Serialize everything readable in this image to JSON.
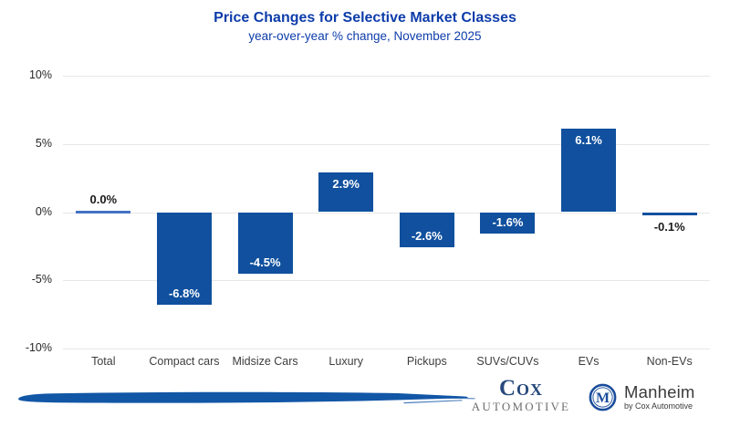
{
  "chart_data": {
    "type": "bar",
    "title": "Price Changes for Selective Market Classes",
    "subtitle": "year-over-year % change, November 2025",
    "categories": [
      "Total",
      "Compact cars",
      "Midsize Cars",
      "Luxury",
      "Pickups",
      "SUVs/CUVs",
      "EVs",
      "Non-EVs"
    ],
    "values": [
      0.0,
      -6.8,
      -4.5,
      2.9,
      -2.6,
      -1.6,
      6.1,
      -0.1
    ],
    "bar_labels": [
      "0.0%",
      "-6.8%",
      "-4.5%",
      "2.9%",
      "-2.6%",
      "-1.6%",
      "6.1%",
      "-0.1%"
    ],
    "xlabel": "",
    "ylabel": "",
    "ylim": [
      -10,
      10
    ],
    "y_ticks": [
      {
        "label": "10%",
        "value": 10
      },
      {
        "label": "5%",
        "value": 5
      },
      {
        "label": "0%",
        "value": 0
      },
      {
        "label": "-5%",
        "value": -5
      },
      {
        "label": "-10%",
        "value": -10
      }
    ],
    "grid": true,
    "legend": "none",
    "colors": {
      "bar": "#10509e",
      "zero_bar": "#4472c4",
      "label_inside": "#ffffff",
      "label_outside": "#1a1a1a",
      "grid": "#e7e7e7",
      "title": "#0d3caa",
      "axis_text": "#262626",
      "category_text": "#3d3d3d"
    }
  },
  "footer": {
    "cox_logo": {
      "wordmark": "Cox",
      "subtext": "AUTOMOTIVE",
      "wordmark_color": "#26497c",
      "subtext_color": "#6e6f72"
    },
    "manheim_logo": {
      "monogram": "M",
      "name": "Manheim",
      "tagline": "by Cox Automotive",
      "ring_color": "#1b4d9c",
      "text_color": "#3a3a3c"
    },
    "brush_color": "#1256a6"
  }
}
